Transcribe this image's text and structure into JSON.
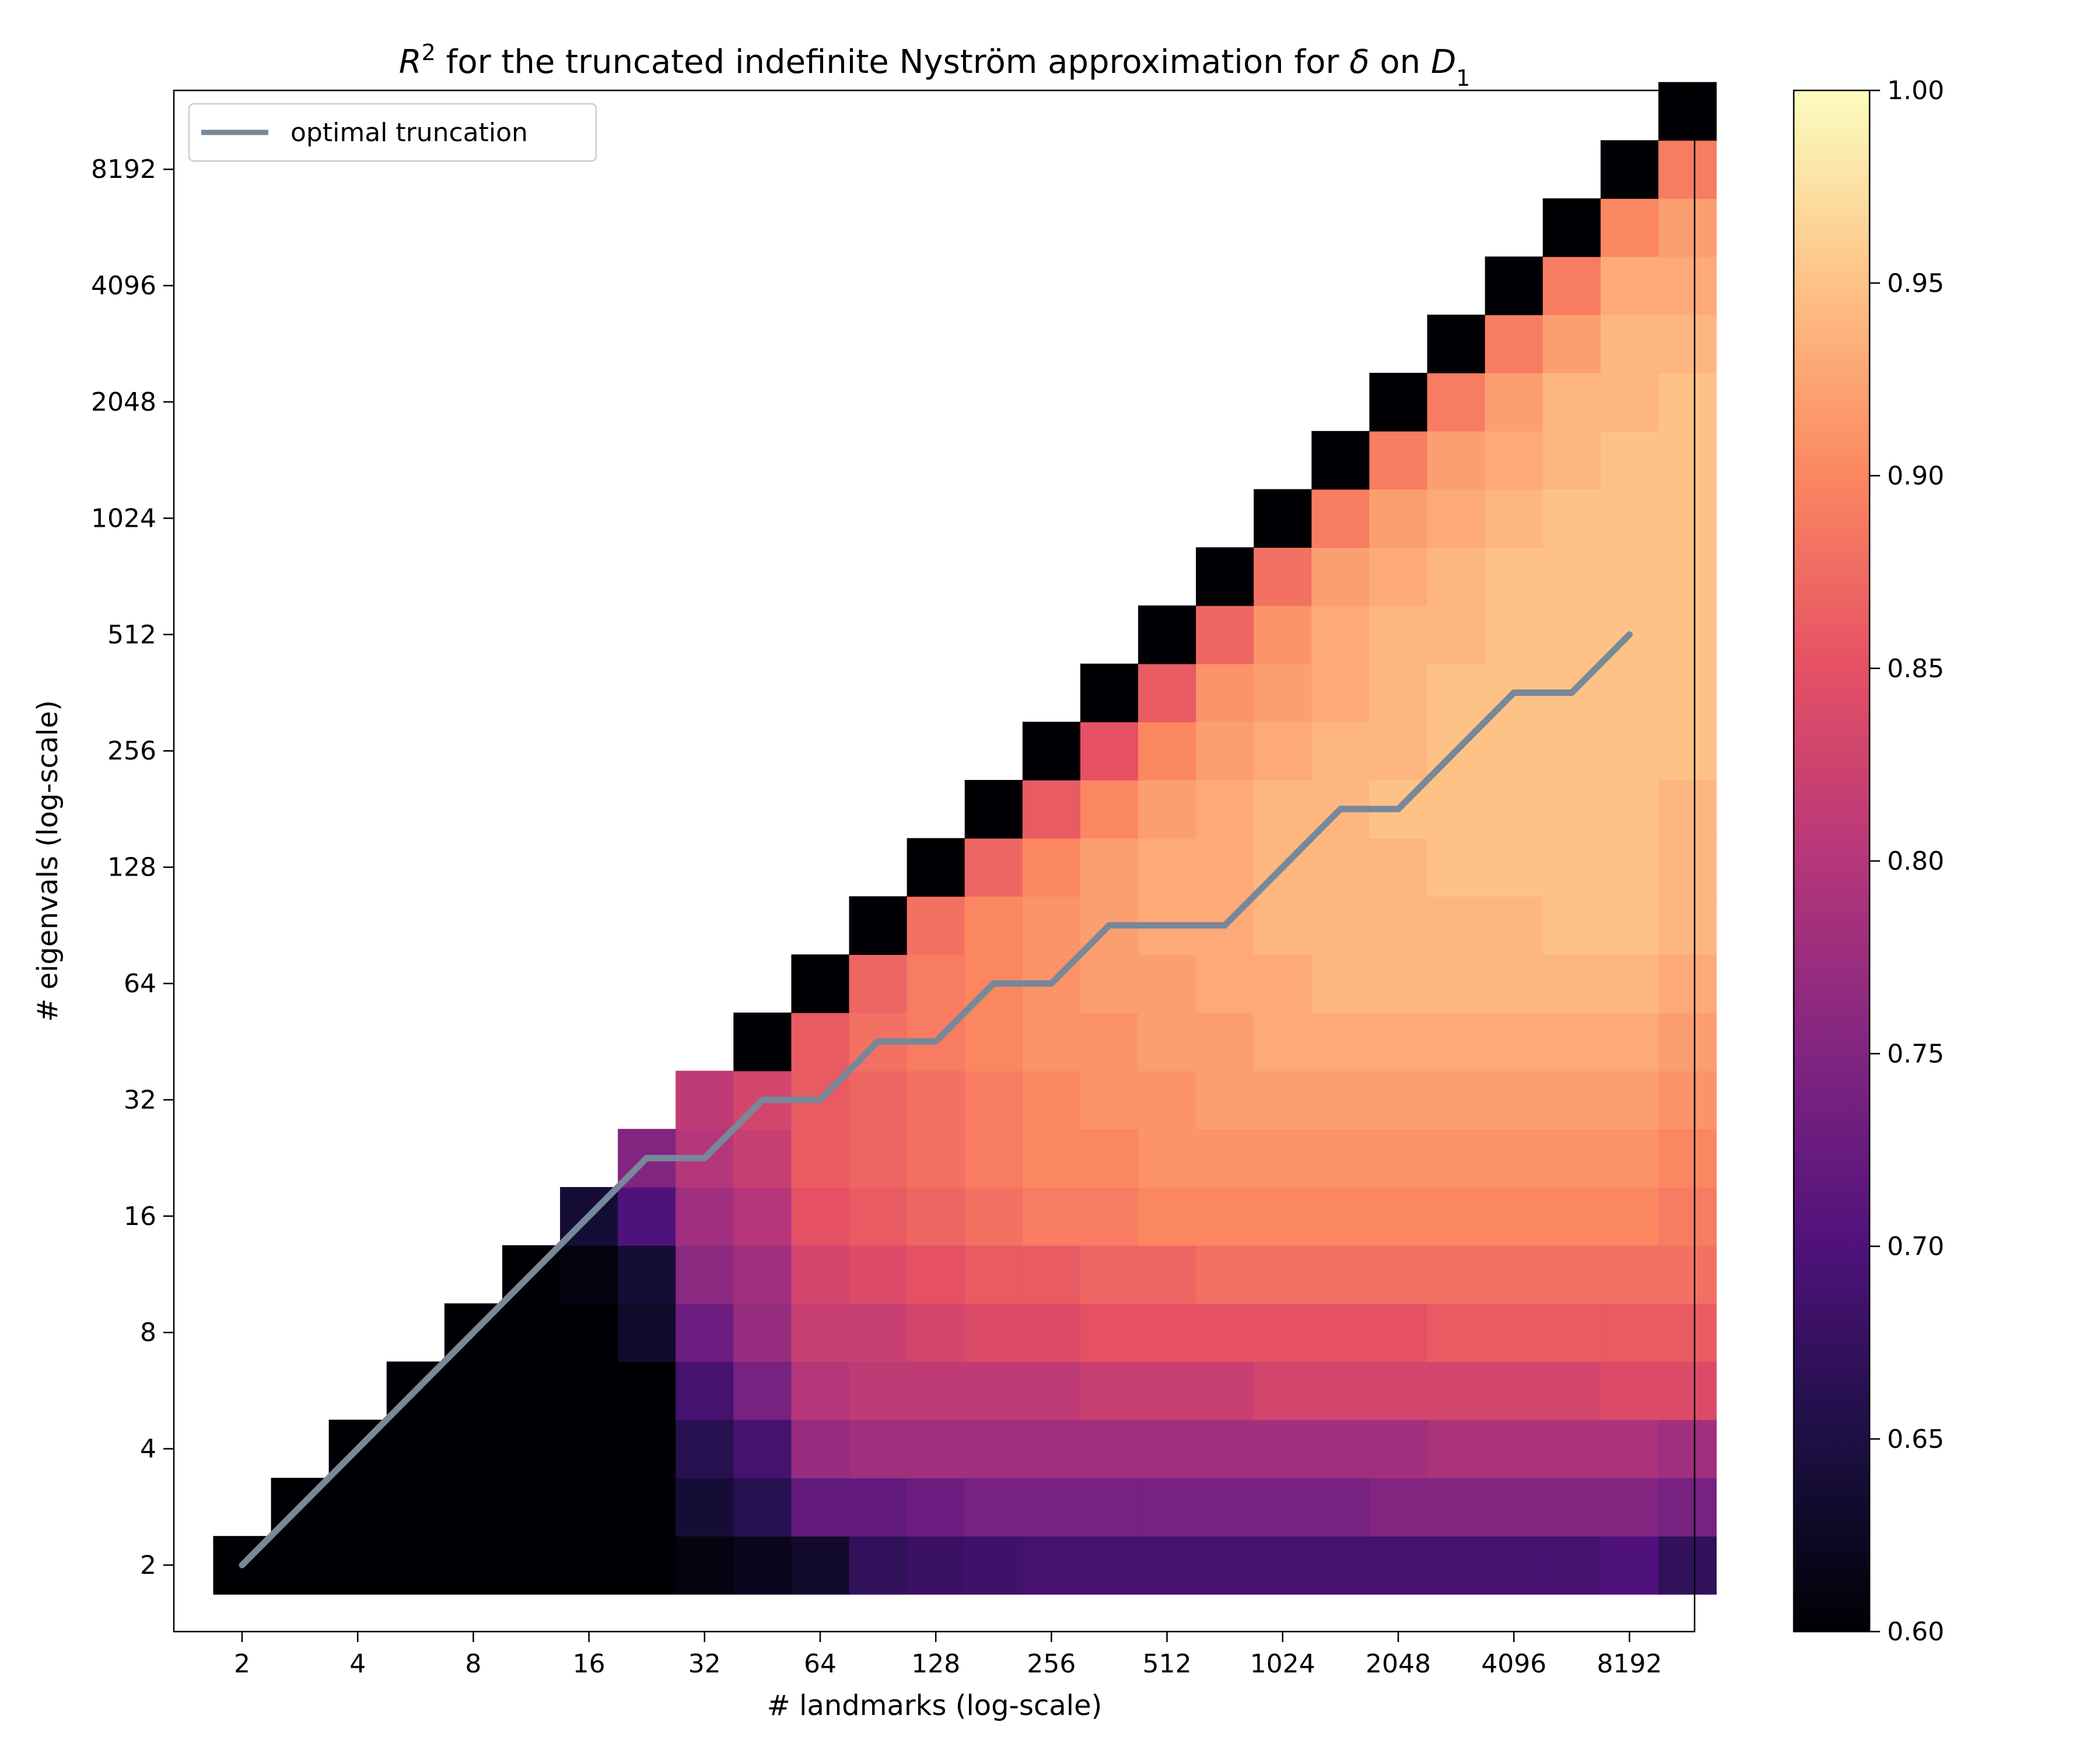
{
  "chart_data": {
    "type": "heatmap",
    "title_parts": {
      "r": "R",
      "sup": "2",
      "middle": " for the truncated indefinite Nyström approximation for ",
      "delta": "δ",
      "on": " on ",
      "d": "D",
      "sub": "1"
    },
    "xlabel": "# landmarks (log-scale)",
    "ylabel": "# eigenvals (log-scale)",
    "x_ticks": [
      "2",
      "4",
      "8",
      "16",
      "32",
      "64",
      "128",
      "256",
      "512",
      "1024",
      "2048",
      "4096",
      "8192"
    ],
    "y_ticks": [
      "2",
      "4",
      "8",
      "16",
      "32",
      "64",
      "128",
      "256",
      "512",
      "1024",
      "2048",
      "4096",
      "8192"
    ],
    "scale": "log2",
    "colormap": "magma",
    "colorbar": {
      "min": 0.6,
      "max": 1.0,
      "ticks": [
        "0.60",
        "0.65",
        "0.70",
        "0.75",
        "0.80",
        "0.85",
        "0.90",
        "0.95",
        "1.00"
      ]
    },
    "legend": {
      "label": "optimal truncation",
      "placement": "top-left",
      "color": "#778899"
    },
    "landmark_exponents": [
      1,
      1.5,
      2,
      2.5,
      3,
      3.5,
      4,
      4.5,
      5,
      5.5,
      6,
      6.5,
      7,
      7.5,
      8,
      8.5,
      9,
      9.5,
      10,
      10.5,
      11,
      11.5,
      12,
      12.5,
      13,
      13.5
    ],
    "eigenval_exponents": [
      1,
      1.5,
      2,
      2.5,
      3,
      3.5,
      4,
      4.5,
      5,
      5.5,
      6,
      6.5,
      7,
      7.5,
      8,
      8.5,
      9,
      9.5,
      10,
      10.5,
      11,
      11.5,
      12,
      12.5,
      13,
      13.5
    ],
    "r2_values": [
      [
        0.6,
        0.6,
        0.6,
        0.6,
        0.6,
        0.6,
        0.6,
        0.6,
        0.61,
        0.62,
        0.63,
        0.67,
        0.68,
        0.685,
        0.69,
        0.69,
        0.69,
        0.69,
        0.69,
        0.69,
        0.69,
        0.69,
        0.69,
        0.69,
        0.7,
        0.67
      ],
      [
        null,
        0.6,
        0.6,
        0.6,
        0.6,
        0.6,
        0.6,
        0.6,
        0.64,
        0.66,
        0.72,
        0.72,
        0.73,
        0.74,
        0.74,
        0.74,
        0.74,
        0.74,
        0.74,
        0.74,
        0.75,
        0.75,
        0.75,
        0.75,
        0.75,
        0.74
      ],
      [
        null,
        null,
        0.6,
        0.6,
        0.6,
        0.6,
        0.6,
        0.6,
        0.66,
        0.69,
        0.77,
        0.78,
        0.78,
        0.78,
        0.78,
        0.78,
        0.78,
        0.78,
        0.78,
        0.78,
        0.78,
        0.79,
        0.79,
        0.79,
        0.79,
        0.78
      ],
      [
        null,
        null,
        null,
        0.6,
        0.6,
        0.6,
        0.6,
        0.6,
        0.69,
        0.74,
        0.8,
        0.81,
        0.81,
        0.81,
        0.81,
        0.82,
        0.82,
        0.82,
        0.83,
        0.83,
        0.83,
        0.83,
        0.83,
        0.83,
        0.84,
        0.84
      ],
      [
        null,
        null,
        null,
        null,
        0.6,
        0.6,
        0.6,
        0.63,
        0.73,
        0.77,
        0.82,
        0.82,
        0.83,
        0.84,
        0.84,
        0.85,
        0.85,
        0.85,
        0.85,
        0.85,
        0.85,
        0.86,
        0.86,
        0.86,
        0.86,
        0.86
      ],
      [
        null,
        null,
        null,
        null,
        null,
        0.6,
        0.61,
        0.64,
        0.76,
        0.78,
        0.83,
        0.84,
        0.85,
        0.86,
        0.86,
        0.87,
        0.87,
        0.88,
        0.88,
        0.88,
        0.88,
        0.88,
        0.88,
        0.88,
        0.88,
        0.88
      ],
      [
        null,
        null,
        null,
        null,
        null,
        null,
        0.64,
        0.7,
        0.78,
        0.8,
        0.85,
        0.86,
        0.87,
        0.88,
        0.89,
        0.89,
        0.9,
        0.9,
        0.9,
        0.9,
        0.9,
        0.9,
        0.9,
        0.9,
        0.9,
        0.89
      ],
      [
        null,
        null,
        null,
        null,
        null,
        null,
        null,
        0.75,
        0.8,
        0.82,
        0.86,
        0.87,
        0.88,
        0.89,
        0.9,
        0.9,
        0.91,
        0.91,
        0.91,
        0.91,
        0.91,
        0.91,
        0.91,
        0.91,
        0.91,
        0.9
      ],
      [
        null,
        null,
        null,
        null,
        null,
        null,
        null,
        null,
        0.81,
        0.83,
        0.86,
        0.87,
        0.88,
        0.89,
        0.9,
        0.91,
        0.91,
        0.92,
        0.92,
        0.92,
        0.92,
        0.92,
        0.92,
        0.92,
        0.92,
        0.91
      ],
      [
        null,
        null,
        null,
        null,
        null,
        null,
        null,
        null,
        null,
        0.6,
        0.86,
        0.88,
        0.89,
        0.9,
        0.91,
        0.91,
        0.92,
        0.92,
        0.93,
        0.93,
        0.93,
        0.93,
        0.93,
        0.93,
        0.93,
        0.92
      ],
      [
        null,
        null,
        null,
        null,
        null,
        null,
        null,
        null,
        null,
        null,
        0.6,
        0.87,
        0.89,
        0.9,
        0.91,
        0.92,
        0.92,
        0.93,
        0.93,
        0.94,
        0.94,
        0.94,
        0.94,
        0.94,
        0.94,
        0.93
      ],
      [
        null,
        null,
        null,
        null,
        null,
        null,
        null,
        null,
        null,
        null,
        null,
        0.6,
        0.88,
        0.9,
        0.91,
        0.92,
        0.93,
        0.93,
        0.94,
        0.94,
        0.94,
        0.94,
        0.94,
        0.95,
        0.95,
        0.94
      ],
      [
        null,
        null,
        null,
        null,
        null,
        null,
        null,
        null,
        null,
        null,
        null,
        null,
        0.6,
        0.87,
        0.9,
        0.92,
        0.93,
        0.93,
        0.94,
        0.94,
        0.94,
        0.95,
        0.95,
        0.95,
        0.95,
        0.94
      ],
      [
        null,
        null,
        null,
        null,
        null,
        null,
        null,
        null,
        null,
        null,
        null,
        null,
        null,
        0.6,
        0.86,
        0.9,
        0.92,
        0.93,
        0.94,
        0.94,
        0.95,
        0.95,
        0.95,
        0.95,
        0.95,
        0.94
      ],
      [
        null,
        null,
        null,
        null,
        null,
        null,
        null,
        null,
        null,
        null,
        null,
        null,
        null,
        null,
        0.6,
        0.85,
        0.9,
        0.92,
        0.93,
        0.94,
        0.94,
        0.95,
        0.95,
        0.95,
        0.95,
        0.95
      ],
      [
        null,
        null,
        null,
        null,
        null,
        null,
        null,
        null,
        null,
        null,
        null,
        null,
        null,
        null,
        null,
        0.6,
        0.86,
        0.91,
        0.92,
        0.93,
        0.94,
        0.95,
        0.95,
        0.95,
        0.95,
        0.95
      ],
      [
        null,
        null,
        null,
        null,
        null,
        null,
        null,
        null,
        null,
        null,
        null,
        null,
        null,
        null,
        null,
        null,
        0.6,
        0.87,
        0.91,
        0.93,
        0.94,
        0.94,
        0.95,
        0.95,
        0.95,
        0.95
      ],
      [
        null,
        null,
        null,
        null,
        null,
        null,
        null,
        null,
        null,
        null,
        null,
        null,
        null,
        null,
        null,
        null,
        null,
        0.6,
        0.88,
        0.92,
        0.93,
        0.94,
        0.95,
        0.95,
        0.95,
        0.95
      ],
      [
        null,
        null,
        null,
        null,
        null,
        null,
        null,
        null,
        null,
        null,
        null,
        null,
        null,
        null,
        null,
        null,
        null,
        null,
        0.6,
        0.89,
        0.92,
        0.93,
        0.94,
        0.95,
        0.95,
        0.95
      ],
      [
        null,
        null,
        null,
        null,
        null,
        null,
        null,
        null,
        null,
        null,
        null,
        null,
        null,
        null,
        null,
        null,
        null,
        null,
        null,
        0.6,
        0.89,
        0.92,
        0.93,
        0.94,
        0.95,
        0.95
      ],
      [
        null,
        null,
        null,
        null,
        null,
        null,
        null,
        null,
        null,
        null,
        null,
        null,
        null,
        null,
        null,
        null,
        null,
        null,
        null,
        null,
        0.6,
        0.89,
        0.92,
        0.94,
        0.94,
        0.95
      ],
      [
        null,
        null,
        null,
        null,
        null,
        null,
        null,
        null,
        null,
        null,
        null,
        null,
        null,
        null,
        null,
        null,
        null,
        null,
        null,
        null,
        null,
        0.6,
        0.89,
        0.92,
        0.94,
        0.94
      ],
      [
        null,
        null,
        null,
        null,
        null,
        null,
        null,
        null,
        null,
        null,
        null,
        null,
        null,
        null,
        null,
        null,
        null,
        null,
        null,
        null,
        null,
        null,
        0.6,
        0.89,
        0.93,
        0.93
      ],
      [
        null,
        null,
        null,
        null,
        null,
        null,
        null,
        null,
        null,
        null,
        null,
        null,
        null,
        null,
        null,
        null,
        null,
        null,
        null,
        null,
        null,
        null,
        null,
        0.6,
        0.9,
        0.92
      ],
      [
        null,
        null,
        null,
        null,
        null,
        null,
        null,
        null,
        null,
        null,
        null,
        null,
        null,
        null,
        null,
        null,
        null,
        null,
        null,
        null,
        null,
        null,
        null,
        null,
        0.6,
        0.89
      ],
      [
        null,
        null,
        null,
        null,
        null,
        null,
        null,
        null,
        null,
        null,
        null,
        null,
        null,
        null,
        null,
        null,
        null,
        null,
        null,
        null,
        null,
        null,
        null,
        null,
        null,
        0.6
      ]
    ],
    "optimal_truncation": {
      "landmarks": [
        2,
        22.6,
        32,
        45.3,
        64,
        90.5,
        128,
        181,
        256,
        362,
        512,
        724,
        1024,
        1448,
        2048,
        2896,
        4096,
        5793,
        8192
      ],
      "eigenvals": [
        2,
        22.6,
        22.6,
        32,
        32,
        45.3,
        45.3,
        64,
        64,
        90.5,
        90.5,
        90.5,
        128,
        181,
        181,
        256,
        362,
        362,
        512
      ]
    }
  }
}
